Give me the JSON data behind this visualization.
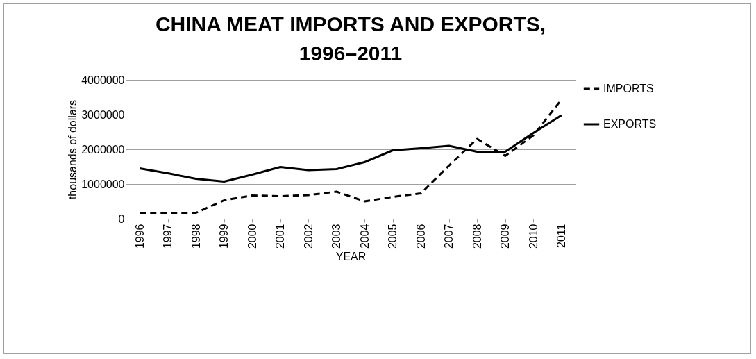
{
  "chart_data": {
    "type": "line",
    "title": "CHINA MEAT IMPORTS AND EXPORTS, 1996–2011",
    "xlabel": "YEAR",
    "ylabel": "thousands of dollars",
    "categories": [
      "1996",
      "1997",
      "1998",
      "1999",
      "2000",
      "2001",
      "2002",
      "2003",
      "2004",
      "2005",
      "2006",
      "2007",
      "2008",
      "2009",
      "2010",
      "2011"
    ],
    "series": [
      {
        "name": "IMPORTS",
        "color": "#000000",
        "line_style": "dashed",
        "values": [
          170000,
          170000,
          170000,
          530000,
          670000,
          650000,
          680000,
          780000,
          500000,
          630000,
          730000,
          1530000,
          2300000,
          1810000,
          2400000,
          3430000
        ]
      },
      {
        "name": "EXPORTS",
        "color": "#000000",
        "line_style": "solid",
        "values": [
          1450000,
          1310000,
          1150000,
          1070000,
          1270000,
          1490000,
          1400000,
          1430000,
          1630000,
          1970000,
          2030000,
          2100000,
          1930000,
          1930000,
          2470000,
          2980000
        ]
      }
    ],
    "ylim": [
      0,
      4000000
    ],
    "yticks": [
      0,
      1000000,
      2000000,
      3000000,
      4000000
    ],
    "grid": "y",
    "legend": "right",
    "marker": "none"
  }
}
